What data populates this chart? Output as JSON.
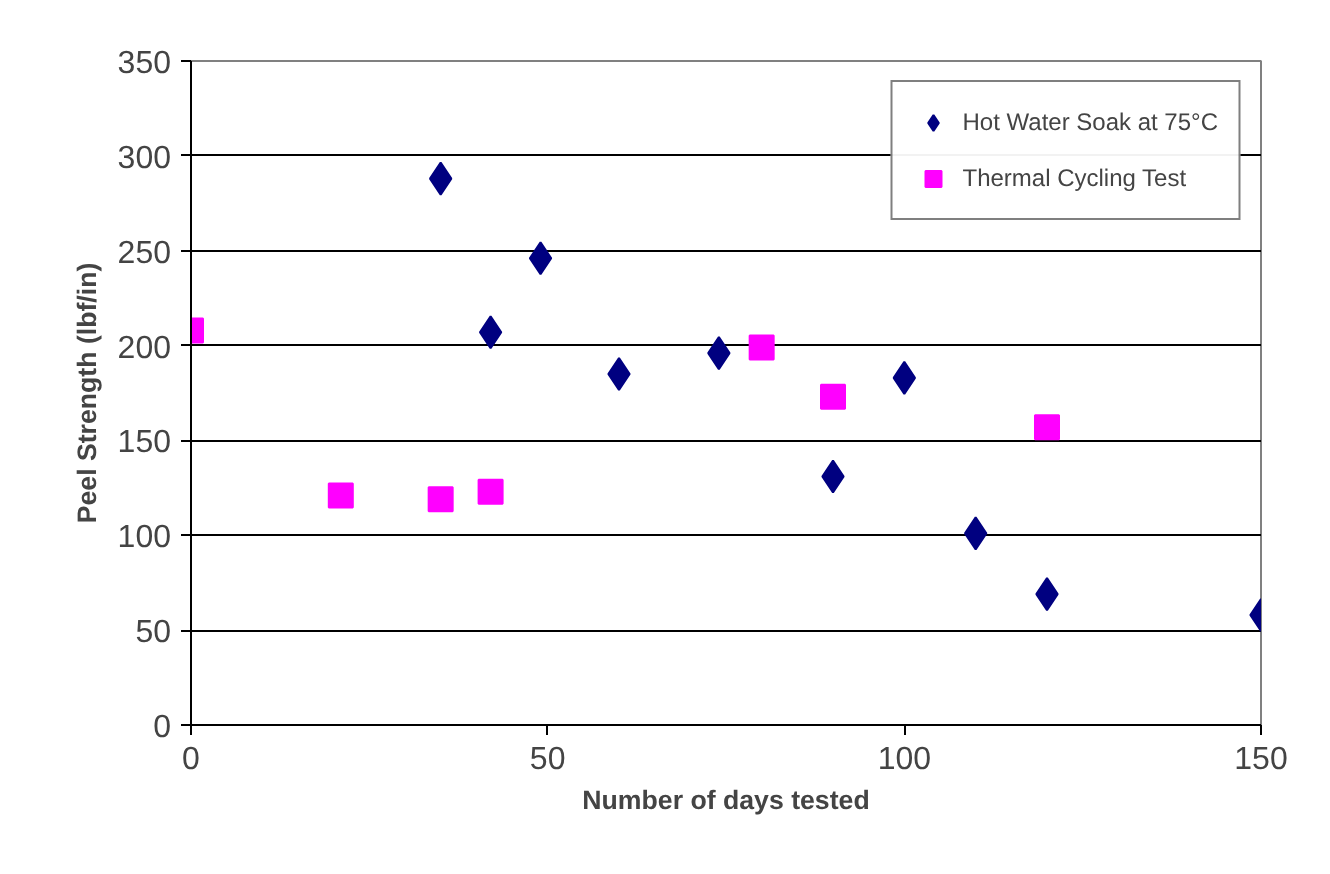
{
  "chart_data": {
    "type": "scatter",
    "xlabel": "Number of days tested",
    "ylabel": "Peel Strength (lbf/in)",
    "xlim": [
      0,
      150
    ],
    "xticks": [
      0,
      50,
      100,
      150
    ],
    "ylim": [
      0,
      350
    ],
    "yticks": [
      0,
      50,
      100,
      150,
      200,
      250,
      300,
      350
    ],
    "grid": "y",
    "legend": "top right",
    "series": [
      {
        "name": "Hot Water Soak at 75°C",
        "color": "#000080",
        "marker": "diamond",
        "x": [
          35,
          42,
          49,
          60,
          74,
          90,
          100,
          110,
          120,
          150
        ],
        "values": [
          288,
          207,
          246,
          185,
          196,
          131,
          183,
          101,
          69,
          58
        ]
      },
      {
        "name": "Thermal Cycling Test",
        "color": "#ff00ff",
        "marker": "square",
        "x": [
          0,
          21,
          35,
          42,
          80,
          90,
          120
        ],
        "values": [
          208,
          121,
          119,
          123,
          199,
          173,
          157
        ]
      }
    ]
  }
}
